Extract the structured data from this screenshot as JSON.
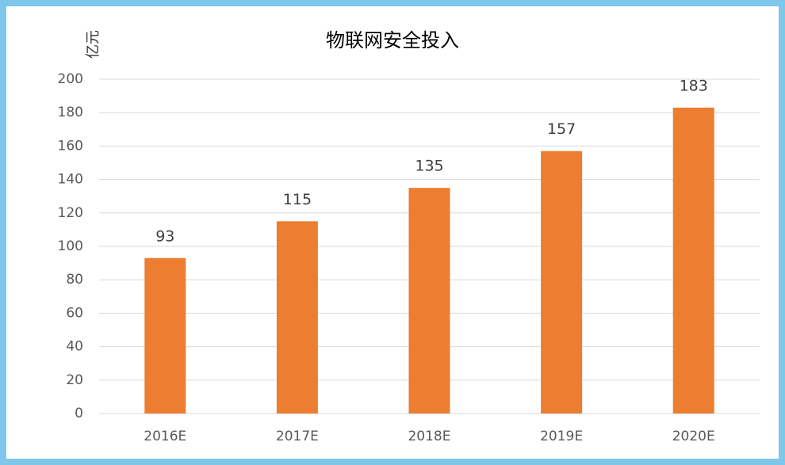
{
  "chart_data": {
    "type": "bar",
    "title": "物联网安全投入",
    "y_label": "亿元",
    "categories": [
      "2016E",
      "2017E",
      "2018E",
      "2019E",
      "2020E"
    ],
    "values": [
      93,
      115,
      135,
      157,
      183
    ],
    "color": "#ed7d31",
    "ylim": [
      0,
      200
    ],
    "yticks": [
      0,
      20,
      40,
      60,
      80,
      100,
      120,
      140,
      160,
      180,
      200
    ],
    "grid": true
  }
}
